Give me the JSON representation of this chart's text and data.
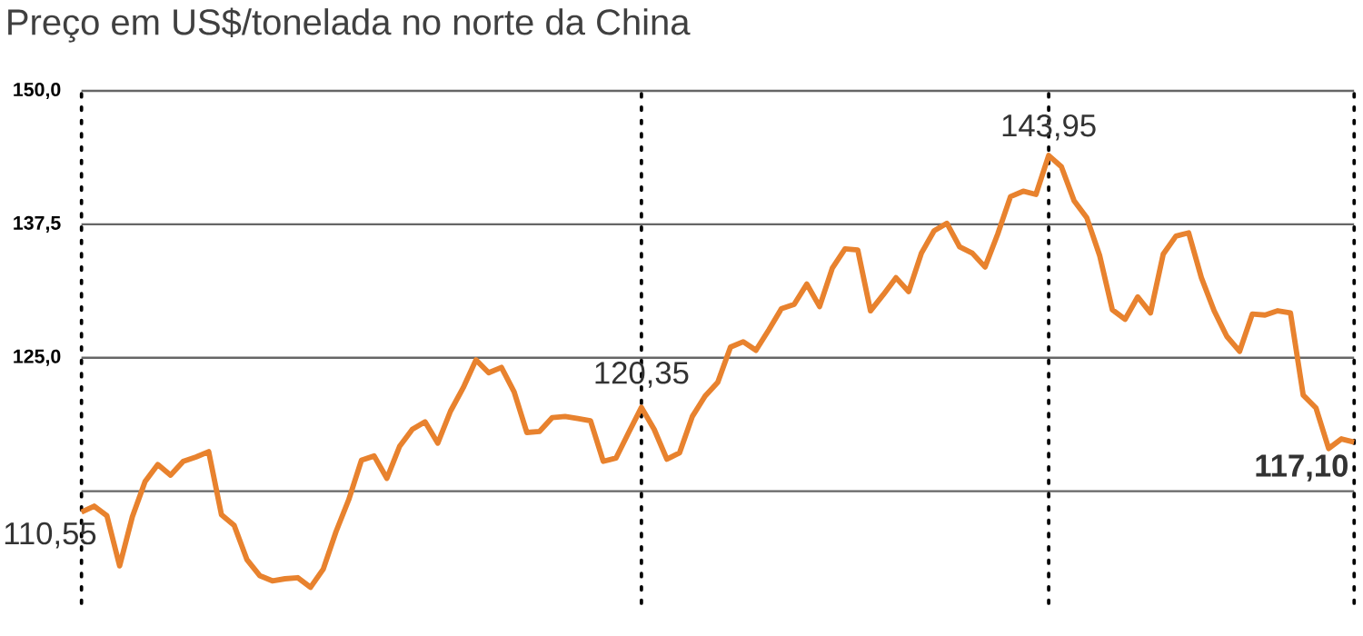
{
  "chart_data": {
    "type": "line",
    "title": "Preço em US$/tonelada no norte da China",
    "categories": [
      null,
      null,
      null,
      null,
      null,
      null,
      null,
      null,
      null,
      null,
      null,
      null,
      null,
      null,
      null,
      null,
      null,
      null,
      null,
      null,
      null,
      null,
      null,
      null,
      null,
      null,
      null,
      null,
      null,
      null,
      null,
      null,
      null,
      null,
      null,
      null,
      null,
      null,
      null,
      null,
      null,
      null,
      null,
      null,
      null,
      null,
      null,
      null,
      null,
      null,
      null,
      null,
      null,
      null,
      null,
      null,
      null,
      null,
      null,
      null,
      null,
      null,
      null,
      null,
      null,
      null,
      null,
      null,
      null,
      null,
      null,
      null,
      null,
      null,
      null,
      null,
      null,
      null,
      null,
      null,
      null,
      null,
      null,
      null,
      null,
      null,
      null,
      null,
      null,
      null,
      null,
      null,
      null,
      null,
      null,
      null,
      null,
      null,
      null,
      null,
      null
    ],
    "values": [
      110.55,
      111.1,
      110.2,
      105.5,
      110.1,
      113.4,
      115.0,
      114.0,
      115.3,
      115.7,
      116.2,
      110.3,
      109.3,
      106.1,
      104.6,
      104.1,
      104.3,
      104.4,
      103.5,
      105.2,
      108.7,
      111.7,
      115.4,
      115.8,
      113.7,
      116.7,
      118.3,
      119.0,
      117.0,
      120.0,
      122.2,
      124.8,
      123.6,
      124.1,
      121.8,
      118.0,
      118.1,
      119.4,
      119.5,
      119.3,
      119.1,
      115.3,
      115.6,
      118.0,
      120.35,
      118.3,
      115.5,
      116.1,
      119.5,
      121.4,
      122.7,
      126.0,
      126.5,
      125.7,
      127.6,
      129.6,
      130.0,
      131.9,
      129.8,
      133.4,
      135.2,
      135.1,
      129.4,
      130.9,
      132.5,
      131.2,
      134.8,
      136.9,
      137.6,
      135.4,
      134.8,
      133.5,
      136.6,
      140.1,
      140.6,
      140.3,
      143.95,
      142.9,
      139.7,
      138.1,
      134.6,
      129.5,
      128.6,
      130.7,
      129.2,
      134.7,
      136.4,
      136.7,
      132.5,
      129.4,
      127.0,
      125.6,
      129.1,
      129.0,
      129.4,
      129.2,
      121.5,
      120.3,
      116.5,
      117.4,
      117.1
    ],
    "color": "#e8822e",
    "ylim": [
      102,
      150
    ],
    "yticks": [
      {
        "value": 112.5,
        "label": null
      },
      {
        "value": 125,
        "label": "125,0"
      },
      {
        "value": 137.5,
        "label": "137,5"
      },
      {
        "value": 150,
        "label": "150,0"
      }
    ],
    "grid": "y",
    "tick_labels": "y",
    "marker": "none",
    "line_style": "solid",
    "annotations": [
      "110,55",
      "120,35",
      "143,95",
      "117,10"
    ]
  }
}
